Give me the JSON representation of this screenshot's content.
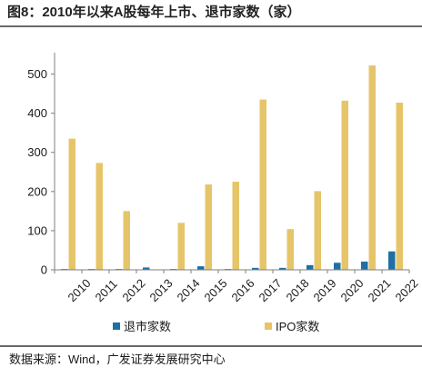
{
  "header": {
    "title": "图8：2010年以来A股每年上市、退市家数（家）"
  },
  "chart_data": {
    "type": "bar",
    "title": "图8：2010年以来A股每年上市、退市家数（家）",
    "xlabel": "",
    "ylabel": "",
    "ylim": [
      0,
      550
    ],
    "yticks": [
      0,
      100,
      200,
      300,
      400,
      500
    ],
    "grid": false,
    "legend_position": "bottom",
    "categories": [
      "2010",
      "2011",
      "2012",
      "2013",
      "2014",
      "2015",
      "2016",
      "2017",
      "2018",
      "2019",
      "2020",
      "2021",
      "2022"
    ],
    "series": [
      {
        "name": "退市家数",
        "color": "#1f6fa5",
        "values": [
          2,
          2,
          2,
          6,
          2,
          9,
          2,
          5,
          5,
          12,
          18,
          21,
          47
        ]
      },
      {
        "name": "IPO家数",
        "color": "#e6c56a",
        "values": [
          335,
          273,
          150,
          0,
          120,
          218,
          225,
          435,
          104,
          201,
          432,
          522,
          427
        ]
      }
    ]
  },
  "footer": {
    "source": "数据来源：Wind，广发证券发展研究中心"
  }
}
